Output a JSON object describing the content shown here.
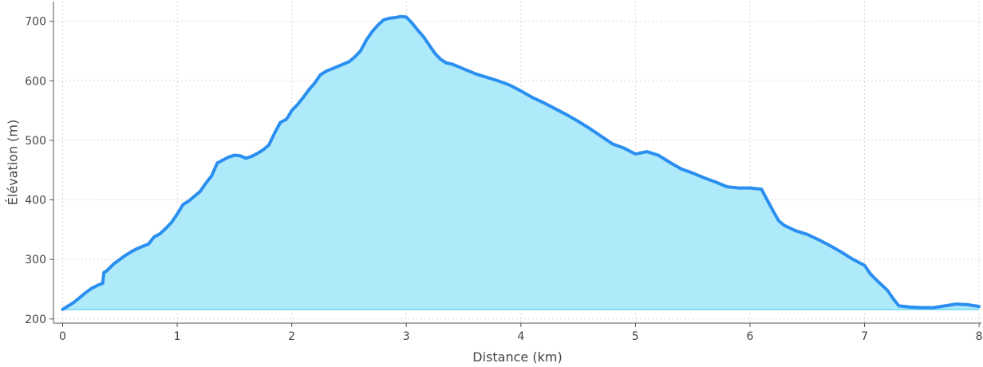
{
  "chart_data": {
    "type": "area",
    "title": "",
    "xlabel": "Distance (km)",
    "ylabel": "Élévation (m)",
    "xlim": [
      -0.08,
      8.02
    ],
    "ylim": [
      193,
      733
    ],
    "xticks": [
      0,
      1,
      2,
      3,
      4,
      5,
      6,
      7,
      8
    ],
    "yticks": [
      200,
      300,
      400,
      500,
      600,
      700
    ],
    "grid": true,
    "baseline": 216,
    "colors": {
      "line": "#2a8ff0",
      "fill": "#aeeafa",
      "baseline": "#7fdcf5"
    },
    "series": [
      {
        "x": [
          0,
          0.05,
          0.1,
          0.15,
          0.2,
          0.25,
          0.3,
          0.35,
          0.36,
          0.38,
          0.45,
          0.5,
          0.55,
          0.6,
          0.65,
          0.7,
          0.75,
          0.8,
          0.85,
          0.9,
          0.95,
          1.0,
          1.05,
          1.1,
          1.15,
          1.2,
          1.25,
          1.3,
          1.35,
          1.38,
          1.4,
          1.45,
          1.5,
          1.55,
          1.6,
          1.65,
          1.7,
          1.75,
          1.8,
          1.85,
          1.9,
          1.95,
          1.97,
          2.0,
          2.05,
          2.1,
          2.15,
          2.2,
          2.25,
          2.3,
          2.35,
          2.4,
          2.45,
          2.5,
          2.55,
          2.6,
          2.65,
          2.7,
          2.75,
          2.8,
          2.85,
          2.9,
          2.95,
          3.0,
          3.05,
          3.1,
          3.15,
          3.2,
          3.25,
          3.3,
          3.35,
          3.4,
          3.5,
          3.6,
          3.7,
          3.8,
          3.9,
          4.0,
          4.1,
          4.2,
          4.3,
          4.4,
          4.5,
          4.6,
          4.7,
          4.8,
          4.9,
          5.0,
          5.05,
          5.1,
          5.2,
          5.3,
          5.4,
          5.5,
          5.6,
          5.7,
          5.8,
          5.9,
          6.0,
          6.1,
          6.15,
          6.2,
          6.25,
          6.3,
          6.4,
          6.45,
          6.5,
          6.6,
          6.7,
          6.8,
          6.9,
          7.0,
          7.05,
          7.1,
          7.2,
          7.25,
          7.3,
          7.4,
          7.5,
          7.6,
          7.7,
          7.8,
          7.9,
          8.0
        ],
        "y": [
          216,
          222,
          228,
          236,
          244,
          251,
          256,
          260,
          278,
          280,
          293,
          300,
          307,
          313,
          318,
          322,
          326,
          338,
          343,
          352,
          362,
          376,
          392,
          398,
          406,
          414,
          428,
          440,
          462,
          465,
          467,
          472,
          475,
          474,
          470,
          473,
          478,
          484,
          492,
          512,
          530,
          535,
          540,
          550,
          560,
          572,
          585,
          596,
          610,
          616,
          620,
          624,
          628,
          632,
          640,
          650,
          668,
          682,
          693,
          702,
          705,
          706,
          708,
          707,
          697,
          685,
          674,
          660,
          646,
          636,
          630,
          628,
          620,
          612,
          606,
          600,
          593,
          583,
          572,
          563,
          553,
          543,
          532,
          520,
          507,
          494,
          487,
          477,
          479,
          481,
          475,
          463,
          452,
          445,
          437,
          430,
          422,
          420,
          420,
          418,
          400,
          382,
          365,
          357,
          348,
          345,
          342,
          333,
          323,
          312,
          300,
          290,
          276,
          266,
          248,
          234,
          222,
          220,
          219,
          219,
          222,
          225,
          224,
          221
        ]
      }
    ]
  }
}
